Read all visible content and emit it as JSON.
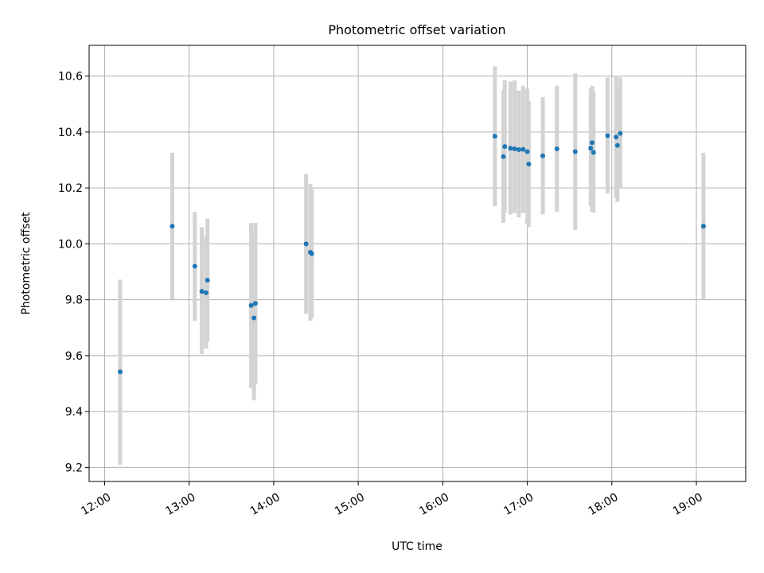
{
  "chart_data": {
    "type": "scatter",
    "title": "Photometric offset variation",
    "xlabel": "UTC time",
    "ylabel": "Photometric offset",
    "x_tick_labels": [
      "12:00",
      "13:00",
      "14:00",
      "15:00",
      "16:00",
      "17:00",
      "18:00",
      "19:00"
    ],
    "y_tick_labels": [
      "9.2",
      "9.4",
      "9.6",
      "9.8",
      "10.0",
      "10.2",
      "10.4",
      "10.6"
    ],
    "xlim": [
      "11:49",
      "19:35"
    ],
    "ylim": [
      9.15,
      10.71
    ],
    "grid": true,
    "colors": {
      "point": "#1f77b4",
      "errorbar": "#d3d3d3"
    },
    "points": [
      {
        "time": "12:11",
        "y": 9.542,
        "ylow": 9.21,
        "yhigh": 9.872
      },
      {
        "time": "12:48",
        "y": 10.063,
        "ylow": 9.8,
        "yhigh": 10.326
      },
      {
        "time": "13:04",
        "y": 9.92,
        "ylow": 9.725,
        "yhigh": 10.115
      },
      {
        "time": "13:09",
        "y": 9.83,
        "ylow": 9.605,
        "yhigh": 10.06
      },
      {
        "time": "13:12",
        "y": 9.825,
        "ylow": 9.625,
        "yhigh": 10.025
      },
      {
        "time": "13:13",
        "y": 9.87,
        "ylow": 9.65,
        "yhigh": 10.09
      },
      {
        "time": "13:44",
        "y": 9.78,
        "ylow": 9.485,
        "yhigh": 10.075
      },
      {
        "time": "13:46",
        "y": 9.735,
        "ylow": 9.44,
        "yhigh": 10.03
      },
      {
        "time": "13:47",
        "y": 9.787,
        "ylow": 9.5,
        "yhigh": 10.075
      },
      {
        "time": "14:23",
        "y": 10.0,
        "ylow": 9.75,
        "yhigh": 10.25
      },
      {
        "time": "14:26",
        "y": 9.97,
        "ylow": 9.725,
        "yhigh": 10.215
      },
      {
        "time": "14:27",
        "y": 9.965,
        "ylow": 9.735,
        "yhigh": 10.195
      },
      {
        "time": "16:37",
        "y": 10.385,
        "ylow": 10.135,
        "yhigh": 10.635
      },
      {
        "time": "16:43",
        "y": 10.312,
        "ylow": 10.075,
        "yhigh": 10.55
      },
      {
        "time": "16:44",
        "y": 10.348,
        "ylow": 10.112,
        "yhigh": 10.585
      },
      {
        "time": "16:48",
        "y": 10.342,
        "ylow": 10.105,
        "yhigh": 10.58
      },
      {
        "time": "16:51",
        "y": 10.34,
        "ylow": 10.11,
        "yhigh": 10.585
      },
      {
        "time": "16:54",
        "y": 10.337,
        "ylow": 10.095,
        "yhigh": 10.548
      },
      {
        "time": "16:57",
        "y": 10.338,
        "ylow": 10.11,
        "yhigh": 10.566
      },
      {
        "time": "17:00",
        "y": 10.33,
        "ylow": 10.07,
        "yhigh": 10.555
      },
      {
        "time": "17:01",
        "y": 10.285,
        "ylow": 10.06,
        "yhigh": 10.51
      },
      {
        "time": "17:11",
        "y": 10.315,
        "ylow": 10.105,
        "yhigh": 10.525
      },
      {
        "time": "17:21",
        "y": 10.34,
        "ylow": 10.115,
        "yhigh": 10.565
      },
      {
        "time": "17:34",
        "y": 10.33,
        "ylow": 10.05,
        "yhigh": 10.61
      },
      {
        "time": "17:45",
        "y": 10.342,
        "ylow": 10.135,
        "yhigh": 10.555
      },
      {
        "time": "17:46",
        "y": 10.362,
        "ylow": 10.115,
        "yhigh": 10.565
      },
      {
        "time": "17:47",
        "y": 10.327,
        "ylow": 10.112,
        "yhigh": 10.545
      },
      {
        "time": "17:57",
        "y": 10.387,
        "ylow": 10.18,
        "yhigh": 10.595
      },
      {
        "time": "18:03",
        "y": 10.382,
        "ylow": 10.165,
        "yhigh": 10.6
      },
      {
        "time": "18:04",
        "y": 10.352,
        "ylow": 10.15,
        "yhigh": 10.555
      },
      {
        "time": "18:06",
        "y": 10.395,
        "ylow": 10.2,
        "yhigh": 10.595
      },
      {
        "time": "19:05",
        "y": 10.063,
        "ylow": 9.8,
        "yhigh": 10.326
      }
    ]
  }
}
